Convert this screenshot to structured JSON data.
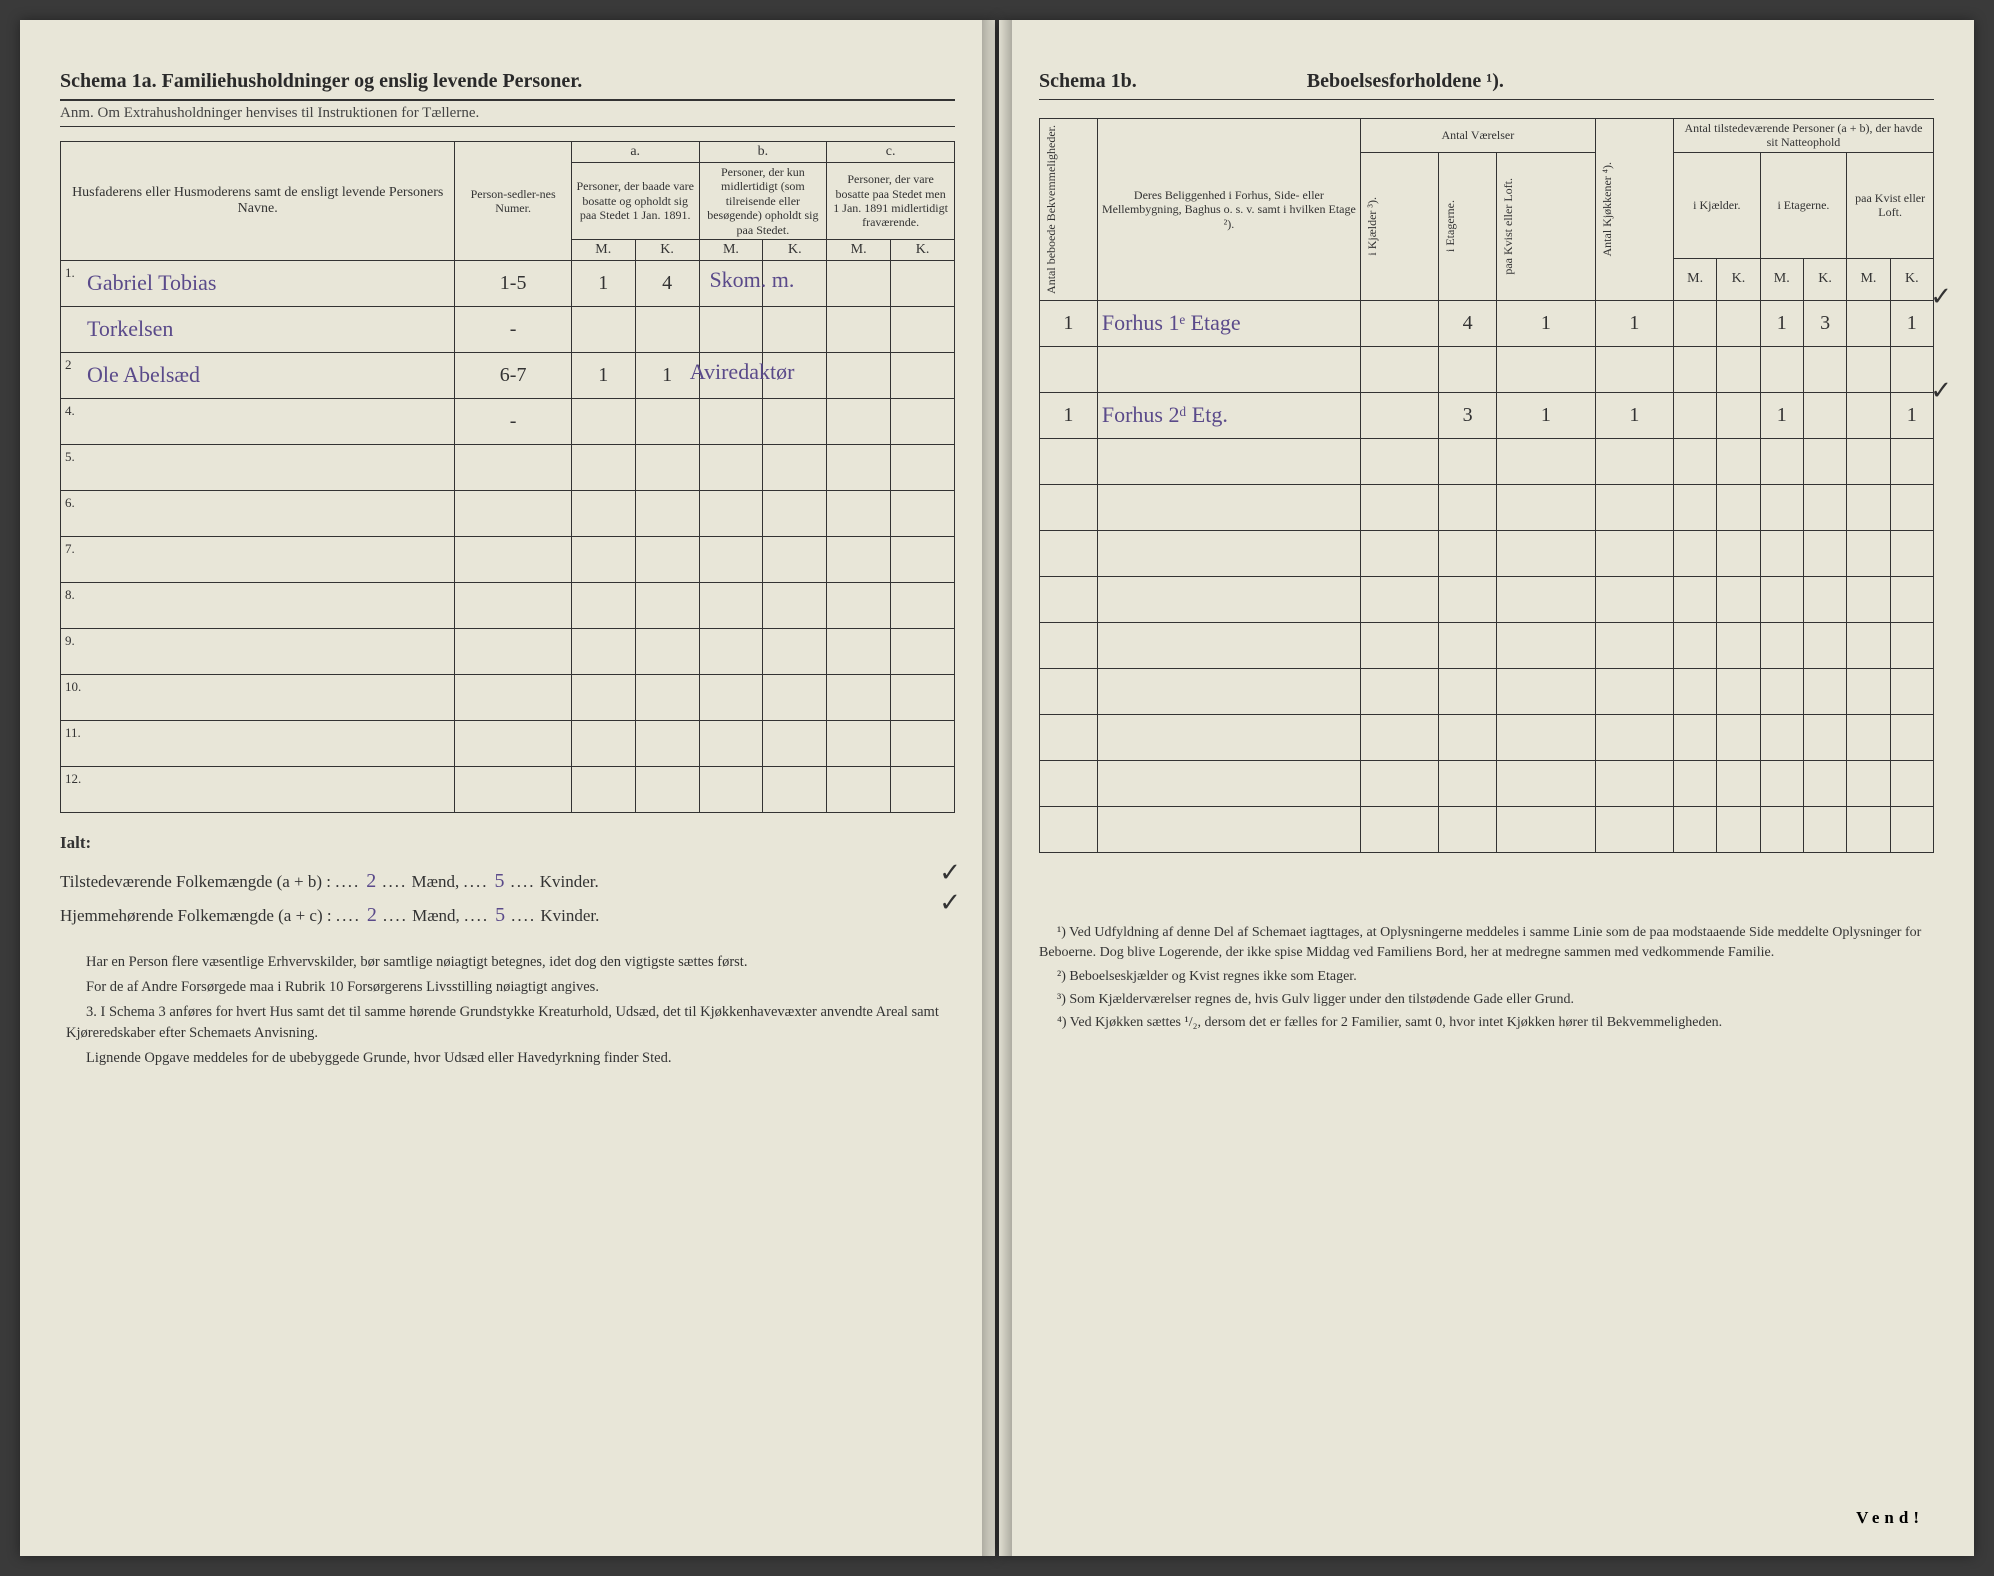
{
  "left": {
    "title": "Schema 1a.  Familiehusholdninger og enslig levende Personer.",
    "anm": "Anm.  Om Extrahusholdninger henvises til Instruktionen for Tællerne.",
    "headers": {
      "name": "Husfaderens eller Husmoderens samt de ensligt levende Personers Navne.",
      "sedler": "Person-sedler-nes Numer.",
      "a": "a.",
      "a_sub": "Personer, der baade vare bosatte og opholdt sig paa Stedet 1 Jan. 1891.",
      "b": "b.",
      "b_sub": "Personer, der kun midlertidigt (som tilreisende eller besøgende) opholdt sig paa Stedet.",
      "c": "c.",
      "c_sub": "Personer, der vare bosatte paa Stedet men 1 Jan. 1891 midlertidigt fraværende.",
      "m": "M.",
      "k": "K."
    },
    "rows": [
      {
        "n": "1.",
        "name": "Gabriel Tobias",
        "sedler": "1-5",
        "am": "1",
        "ak": "4",
        "bm": "",
        "bk": "",
        "cm": "",
        "ck": "",
        "note": "Skom. m."
      },
      {
        "n": "",
        "name": "Torkelsen",
        "sedler": "-",
        "am": "",
        "ak": "",
        "bm": "",
        "bk": "",
        "cm": "",
        "ck": "",
        "note": ""
      },
      {
        "n": "2",
        "name": "Ole Abelsæd",
        "sedler": "6-7",
        "am": "1",
        "ak": "1",
        "bm": "",
        "bk": "",
        "cm": "",
        "ck": "",
        "note": "Aviredaktør"
      },
      {
        "n": "4.",
        "name": "",
        "sedler": "-",
        "am": "",
        "ak": "",
        "bm": "",
        "bk": "",
        "cm": "",
        "ck": "",
        "note": ""
      },
      {
        "n": "5.",
        "name": "",
        "sedler": "",
        "am": "",
        "ak": "",
        "bm": "",
        "bk": "",
        "cm": "",
        "ck": "",
        "note": ""
      },
      {
        "n": "6.",
        "name": "",
        "sedler": "",
        "am": "",
        "ak": "",
        "bm": "",
        "bk": "",
        "cm": "",
        "ck": "",
        "note": ""
      },
      {
        "n": "7.",
        "name": "",
        "sedler": "",
        "am": "",
        "ak": "",
        "bm": "",
        "bk": "",
        "cm": "",
        "ck": "",
        "note": ""
      },
      {
        "n": "8.",
        "name": "",
        "sedler": "",
        "am": "",
        "ak": "",
        "bm": "",
        "bk": "",
        "cm": "",
        "ck": "",
        "note": ""
      },
      {
        "n": "9.",
        "name": "",
        "sedler": "",
        "am": "",
        "ak": "",
        "bm": "",
        "bk": "",
        "cm": "",
        "ck": "",
        "note": ""
      },
      {
        "n": "10.",
        "name": "",
        "sedler": "",
        "am": "",
        "ak": "",
        "bm": "",
        "bk": "",
        "cm": "",
        "ck": "",
        "note": ""
      },
      {
        "n": "11.",
        "name": "",
        "sedler": "",
        "am": "",
        "ak": "",
        "bm": "",
        "bk": "",
        "cm": "",
        "ck": "",
        "note": ""
      },
      {
        "n": "12.",
        "name": "",
        "sedler": "",
        "am": "",
        "ak": "",
        "bm": "",
        "bk": "",
        "cm": "",
        "ck": "",
        "note": ""
      }
    ],
    "ialt": "Ialt:",
    "tilstede_label": "Tilstedeværende Folkemængde (a + b) :",
    "hjemme_label": "Hjemmehørende Folkemængde (a + c) :",
    "maend": "Mænd,",
    "kvinder": "Kvinder.",
    "tot_m1": "2",
    "tot_k1": "5",
    "tot_m2": "2",
    "tot_k2": "5",
    "notes": [
      "Har en Person flere væsentlige Erhvervskilder, bør samtlige nøiagtigt betegnes, idet dog den vigtigste sættes først.",
      "For de af Andre Forsørgede maa i Rubrik 10 Forsørgerens Livsstilling nøiagtigt angives.",
      "3. I Schema 3 anføres for hvert Hus samt det til samme hørende Grundstykke Kreaturhold, Udsæd, det til Kjøkkenhavevæxter anvendte Areal samt Kjøreredskaber efter Schemaets Anvisning.",
      "Lignende Opgave meddeles for de ubebyggede Grunde, hvor Udsæd eller Havedyrkning finder Sted."
    ]
  },
  "right": {
    "title": "Schema 1b.",
    "title2": "Beboelsesforholdene ¹).",
    "headers": {
      "bekv": "Antal beboede Bekvemmeligheder.",
      "belig": "Deres Beliggenhed i Forhus, Side- eller Mellembygning, Baghus o. s. v. samt i hvilken Etage ²).",
      "vaerelser": "Antal Værelser",
      "kj": "i Kjælder ³).",
      "et": "i Etagerne.",
      "kv": "paa Kvist eller Loft.",
      "kjok": "Antal Kjøkkener ⁴).",
      "natt": "Antal tilstedeværende Personer (a + b), der havde sit Natteophold",
      "ikj": "i Kjælder.",
      "iet": "i Etagerne.",
      "paakv": "paa Kvist eller Loft.",
      "m": "M.",
      "k": "K."
    },
    "rows": [
      {
        "bekv": "1",
        "belig": "Forhus 1ᵉ Etage",
        "kj": "",
        "et": "4",
        "kv": "1",
        "kjok": "1",
        "ikjm": "",
        "ikjk": "",
        "ietm": "1",
        "ietk": "3",
        "kvm": "",
        "kvk": "1"
      },
      {
        "bekv": "",
        "belig": "",
        "kj": "",
        "et": "",
        "kv": "",
        "kjok": "",
        "ikjm": "",
        "ikjk": "",
        "ietm": "",
        "ietk": "",
        "kvm": "",
        "kvk": ""
      },
      {
        "bekv": "1",
        "belig": "Forhus 2ᵈ Etg.",
        "kj": "",
        "et": "3",
        "kv": "1",
        "kjok": "1",
        "ikjm": "",
        "ikjk": "",
        "ietm": "1",
        "ietk": "",
        "kvm": "",
        "kvk": "1"
      },
      {
        "bekv": "",
        "belig": "",
        "kj": "",
        "et": "",
        "kv": "",
        "kjok": "",
        "ikjm": "",
        "ikjk": "",
        "ietm": "",
        "ietk": "",
        "kvm": "",
        "kvk": ""
      },
      {
        "bekv": "",
        "belig": "",
        "kj": "",
        "et": "",
        "kv": "",
        "kjok": "",
        "ikjm": "",
        "ikjk": "",
        "ietm": "",
        "ietk": "",
        "kvm": "",
        "kvk": ""
      },
      {
        "bekv": "",
        "belig": "",
        "kj": "",
        "et": "",
        "kv": "",
        "kjok": "",
        "ikjm": "",
        "ikjk": "",
        "ietm": "",
        "ietk": "",
        "kvm": "",
        "kvk": ""
      },
      {
        "bekv": "",
        "belig": "",
        "kj": "",
        "et": "",
        "kv": "",
        "kjok": "",
        "ikjm": "",
        "ikjk": "",
        "ietm": "",
        "ietk": "",
        "kvm": "",
        "kvk": ""
      },
      {
        "bekv": "",
        "belig": "",
        "kj": "",
        "et": "",
        "kv": "",
        "kjok": "",
        "ikjm": "",
        "ikjk": "",
        "ietm": "",
        "ietk": "",
        "kvm": "",
        "kvk": ""
      },
      {
        "bekv": "",
        "belig": "",
        "kj": "",
        "et": "",
        "kv": "",
        "kjok": "",
        "ikjm": "",
        "ikjk": "",
        "ietm": "",
        "ietk": "",
        "kvm": "",
        "kvk": ""
      },
      {
        "bekv": "",
        "belig": "",
        "kj": "",
        "et": "",
        "kv": "",
        "kjok": "",
        "ikjm": "",
        "ikjk": "",
        "ietm": "",
        "ietk": "",
        "kvm": "",
        "kvk": ""
      },
      {
        "bekv": "",
        "belig": "",
        "kj": "",
        "et": "",
        "kv": "",
        "kjok": "",
        "ikjm": "",
        "ikjk": "",
        "ietm": "",
        "ietk": "",
        "kvm": "",
        "kvk": ""
      },
      {
        "bekv": "",
        "belig": "",
        "kj": "",
        "et": "",
        "kv": "",
        "kjok": "",
        "ikjm": "",
        "ikjk": "",
        "ietm": "",
        "ietk": "",
        "kvm": "",
        "kvk": ""
      }
    ],
    "footnotes": [
      "¹) Ved Udfyldning af denne Del af Schemaet iagttages, at Oplysningerne meddeles i samme Linie som de paa modstaaende Side meddelte Oplysninger for Beboerne. Dog blive Logerende, der ikke spise Middag ved Familiens Bord, her at medregne sammen med vedkommende Familie.",
      "²) Beboelseskjælder og Kvist regnes ikke som Etager.",
      "³) Som Kjælderværelser regnes de, hvis Gulv ligger under den tilstødende Gade eller Grund.",
      "⁴) Ved Kjøkken sættes ¹/₂, dersom det er fælles for 2 Familier, samt 0, hvor intet Kjøkken hører til Bekvemmeligheden."
    ],
    "vend": "Vend!"
  },
  "style": {
    "paper": "#e8e6d8",
    "ink": "#2a2a2a",
    "hand": "#5a4a8a",
    "table_border": "#333",
    "font": "Times New Roman"
  }
}
